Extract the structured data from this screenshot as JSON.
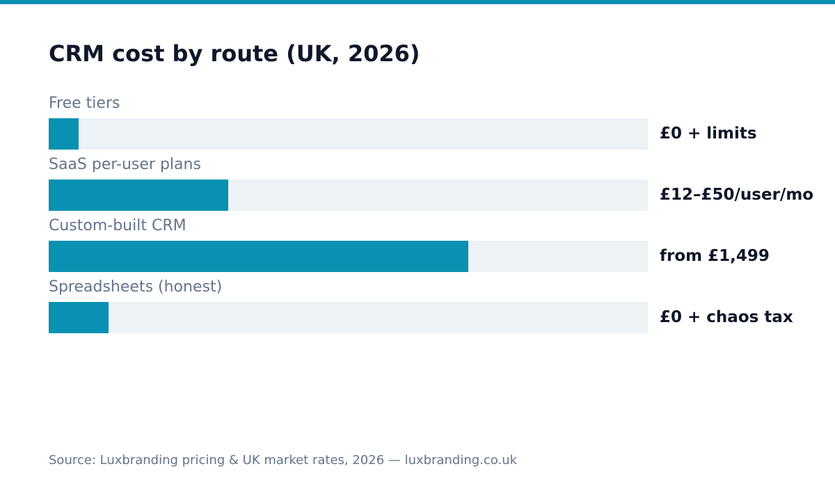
{
  "colors": {
    "accent": "#0891b2",
    "track": "#edf2f7",
    "title_text": "#0f172a",
    "muted_text": "#64748b"
  },
  "chart_data": {
    "type": "bar",
    "orientation": "horizontal",
    "title": "CRM cost by route (UK, 2026)",
    "categories": [
      "Free tiers",
      "SaaS per-user plans",
      "Custom-built CRM",
      "Spreadsheets (honest)"
    ],
    "values": [
      0.05,
      0.3,
      0.7,
      0.1
    ],
    "value_labels": [
      "£0 + limits",
      "£12–£50/user/mo",
      "from £1,499",
      "£0 + chaos tax"
    ],
    "xlim": [
      0,
      1
    ],
    "grid": false,
    "legend": "none",
    "source": "Source: Luxbranding pricing & UK market rates, 2026 — luxbranding.co.uk"
  }
}
